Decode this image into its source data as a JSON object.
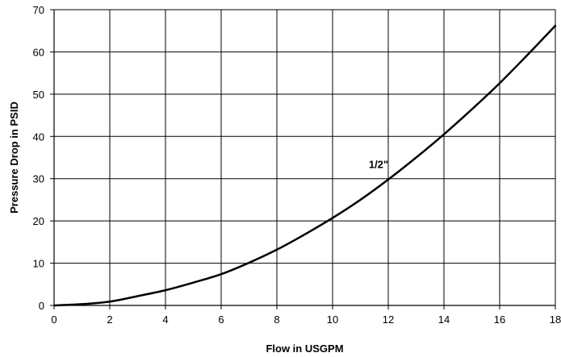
{
  "chart_data": {
    "type": "line",
    "title": "",
    "xlabel": "Flow in USGPM",
    "ylabel": "Pressure Drop in PSID",
    "xlim": [
      0,
      18
    ],
    "ylim": [
      0,
      70
    ],
    "x_ticks": [
      0,
      2,
      4,
      6,
      8,
      10,
      12,
      14,
      16,
      18
    ],
    "y_ticks": [
      0,
      10,
      20,
      30,
      40,
      50,
      60,
      70
    ],
    "x_tick_labels": [
      "0",
      "2",
      "4",
      "6",
      "8",
      "10",
      "12",
      "14",
      "16",
      "18"
    ],
    "y_tick_labels": [
      "0",
      "10",
      "20",
      "30",
      "40",
      "50",
      "60",
      "70"
    ],
    "grid": true,
    "line_color": "#000000",
    "series": [
      {
        "x": [
          0,
          1,
          2,
          3,
          4,
          5,
          6,
          7,
          8,
          9,
          10,
          11,
          12,
          13,
          14,
          15,
          16,
          17,
          18
        ],
        "values": [
          0,
          0.3,
          0.9,
          2.2,
          3.6,
          5.4,
          7.4,
          10.1,
          13.2,
          16.8,
          20.7,
          25.0,
          29.8,
          35.0,
          40.5,
          46.4,
          52.6,
          59.3,
          66.2
        ]
      }
    ],
    "annotations": [
      {
        "text": "1/2\"",
        "x": 11.3,
        "y": 32.5
      }
    ]
  }
}
